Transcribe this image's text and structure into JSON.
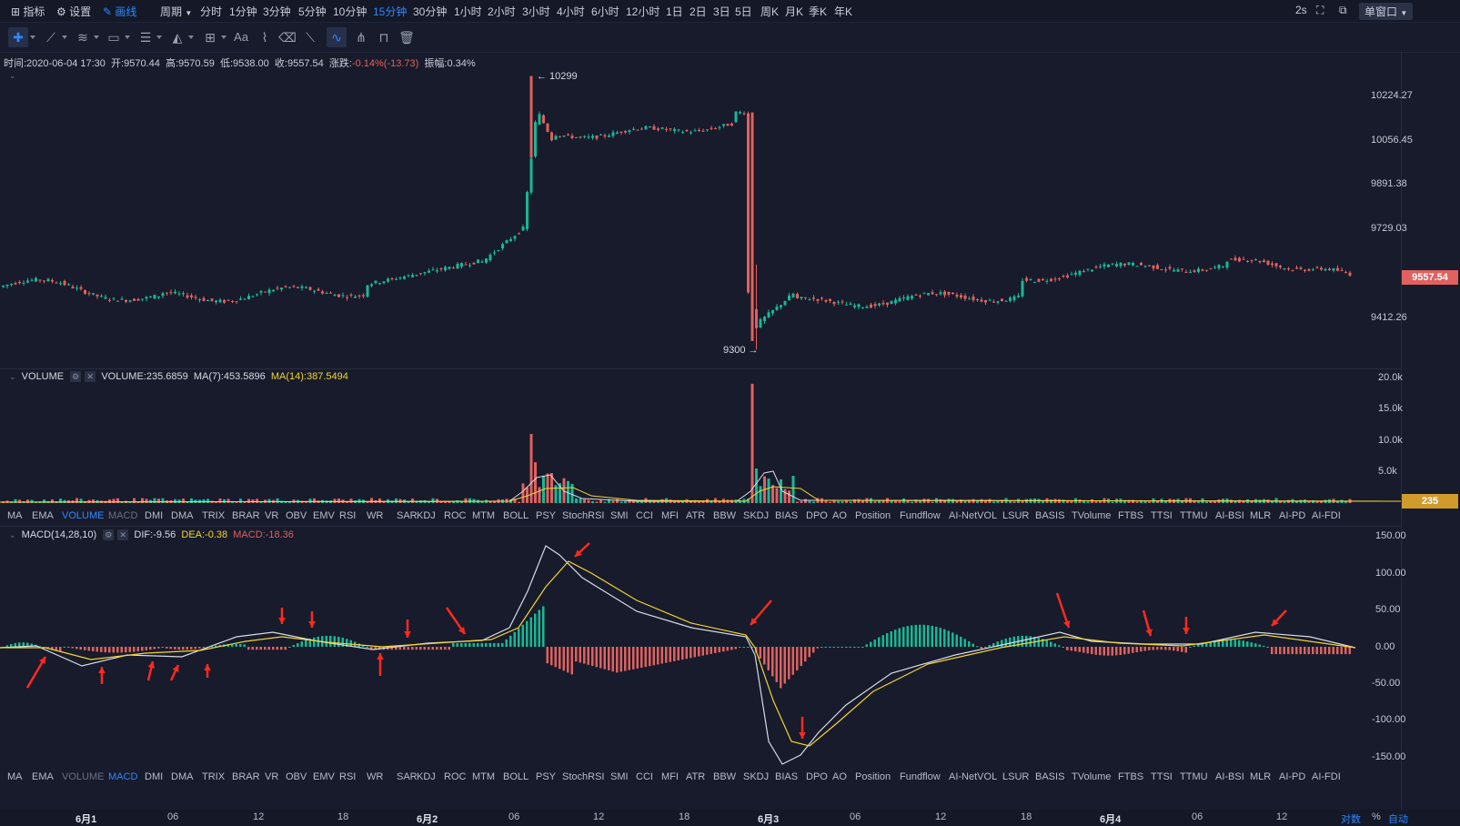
{
  "topbar": {
    "left": [
      {
        "icon": "chart-indicator-icon",
        "label": "指标"
      },
      {
        "icon": "gear-icon",
        "label": "设置"
      },
      {
        "icon": "pencil-icon",
        "label": "画线"
      }
    ],
    "period_label": "周期",
    "periods": [
      "分时",
      "1分钟",
      "3分钟",
      "5分钟",
      "10分钟",
      "15分钟",
      "30分钟",
      "1小时",
      "2小时",
      "3小时",
      "4小时",
      "6小时",
      "12小时",
      "1日",
      "2日",
      "3日",
      "5日",
      "周K",
      "月K",
      "季K",
      "年K"
    ],
    "active_period": "15分钟",
    "refresh": "2s",
    "window_mode": "单窗口"
  },
  "toolbar": {
    "tools": [
      "crosshair-icon",
      "trendline-icon",
      "fib-icon",
      "rectangle-icon",
      "lines-icon",
      "pattern-icon",
      "measure-icon",
      "text-icon",
      "brush-icon",
      "eraser-icon",
      "ruler-icon",
      "magnet-icon",
      "pitchfork-icon",
      "lock-icon",
      "trash-icon"
    ],
    "text_tool": "Aa"
  },
  "ohlc": {
    "time": "时间:2020-06-04 17:30",
    "open": "开:9570.44",
    "high": "高:9570.59",
    "low": "低:9538.00",
    "close": "收:9557.54",
    "change_label": "涨跌:",
    "change": "-0.14%(-13.73)",
    "amp": "振幅:0.34%"
  },
  "main": {
    "price_ticks": [
      "10224.27",
      "10056.45",
      "9891.38",
      "9729.03",
      "9412.26"
    ],
    "current_price": "9557.54",
    "high_marker": "← 10299",
    "low_marker": "9300 →",
    "colors": {
      "up": "#17b897",
      "down": "#e0615e",
      "tag": "#e0615e"
    }
  },
  "volume": {
    "label": "VOLUME",
    "value": "VOLUME:235.6859",
    "ma7": "MA(7):453.5896",
    "ma14": "MA(14):387.5494",
    "ticks": [
      "20.0k",
      "15.0k",
      "10.0k",
      "5.0k"
    ],
    "current": "235",
    "tag_color": "#d19b2b"
  },
  "indicator_tabs": [
    "MA",
    "EMA",
    "VOLUME",
    "MACD",
    "DMI",
    "DMA",
    "TRIX",
    "BRAR",
    "VR",
    "OBV",
    "EMV",
    "RSI",
    "WR",
    "SAR",
    "KDJ",
    "ROC",
    "MTM",
    "BOLL",
    "PSY",
    "StochRSI",
    "SMI",
    "CCI",
    "MFI",
    "ATR",
    "BBW",
    "SKDJ",
    "BIAS",
    "DPO",
    "AO",
    "Position",
    "Fundflow",
    "AI-NetVOL",
    "LSUR",
    "BASIS",
    "TVolume",
    "FTBS",
    "TTSI",
    "TTMU",
    "AI-BSI",
    "MLR",
    "AI-PD",
    "AI-FDI"
  ],
  "macd": {
    "label": "MACD(14,28,10)",
    "dif": "DIF:-9.56",
    "dea": "DEA:-0.38",
    "macd": "MACD:-18.36",
    "ticks": [
      "150.00",
      "100.00",
      "50.00",
      "0.00",
      "-50.00",
      "-100.00",
      "-150.00"
    ]
  },
  "time_axis": [
    "6月1",
    "06",
    "12",
    "18",
    "6月2",
    "06",
    "12",
    "18",
    "6月3",
    "06",
    "12",
    "18",
    "6月4",
    "06",
    "12"
  ],
  "bottom_right": {
    "log": "对数",
    "pct": "%",
    "auto": "自动"
  }
}
